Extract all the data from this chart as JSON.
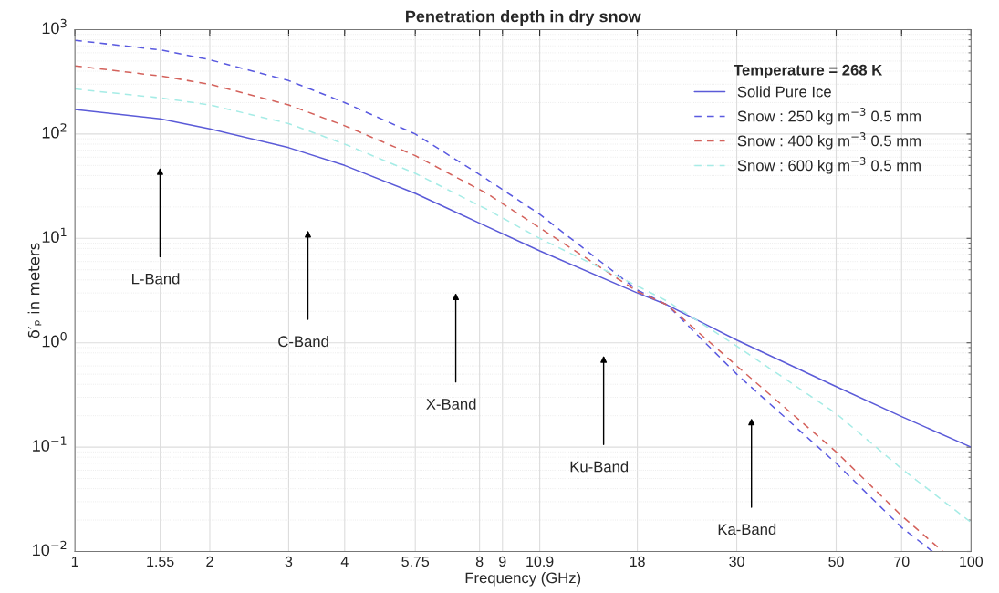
{
  "chart_data": {
    "type": "line",
    "title": "Penetration depth in dry snow",
    "xlabel": "Frequency (GHz)",
    "ylabel": "δ′ₚ in meters",
    "legend_title": "Temperature = 268 K",
    "log": "xy",
    "grid": true,
    "legend": "top right",
    "xlim": [
      1,
      100
    ],
    "xticks": [
      1,
      1.55,
      2,
      3,
      4,
      5.75,
      8,
      9,
      10.9,
      18,
      30,
      50,
      70,
      100
    ],
    "ylim": [
      0.01,
      1000
    ],
    "yticks": [
      {
        "value": 0.01,
        "label": "10$^{−2}$"
      },
      {
        "value": 0.1,
        "label": "10$^{−1}$"
      },
      {
        "value": 1,
        "label": "10$^{0}$"
      },
      {
        "value": 10,
        "label": "10$^{1}$"
      },
      {
        "value": 100,
        "label": "10$^{2}$"
      },
      {
        "value": 1000,
        "label": "10$^{3}$"
      }
    ],
    "series": [
      {
        "name": "Solid Pure Ice",
        "color": "#5b5bd8",
        "line_style": "solid",
        "x": [
          1,
          1.55,
          2,
          3,
          4,
          5.75,
          8,
          10.9,
          18,
          21,
          30,
          50,
          70,
          100
        ],
        "values": [
          172,
          140,
          112,
          74,
          50,
          27,
          14,
          7.6,
          3.0,
          2.3,
          1.06,
          0.38,
          0.196,
          0.1
        ]
      },
      {
        "name": "Snow : 250 kg m$^{−3}$ 0.5 mm",
        "color": "#5a5ae0",
        "line_style": "dashed",
        "x": [
          1,
          1.55,
          2,
          3,
          4,
          5.75,
          8.3,
          10.9,
          18,
          21,
          30,
          50,
          70,
          82
        ],
        "values": [
          790,
          640,
          515,
          325,
          200,
          100,
          37,
          17,
          3.2,
          2.3,
          0.5,
          0.07,
          0.017,
          0.01
        ]
      },
      {
        "name": "Snow : 400 kg m$^{−3}$ 0.5 mm",
        "color": "#d4625c",
        "line_style": "dashed",
        "x": [
          1,
          1.55,
          2,
          3,
          4,
          5.75,
          8.3,
          10.9,
          18,
          21,
          30,
          50,
          70,
          86.5
        ],
        "values": [
          450,
          360,
          300,
          190,
          120,
          62,
          27,
          12.6,
          3.1,
          2.3,
          0.6,
          0.09,
          0.022,
          0.01
        ]
      },
      {
        "name": "Snow : 600 kg m$^{−3}$ 0.5 mm",
        "color": "#a6ece6",
        "line_style": "dashed",
        "x": [
          1,
          1.55,
          2,
          3,
          4,
          5.75,
          8.3,
          10.9,
          18,
          21,
          30,
          50,
          70,
          100
        ],
        "values": [
          270,
          222,
          190,
          126,
          80,
          42,
          19,
          10,
          3.5,
          2.5,
          0.93,
          0.21,
          0.062,
          0.019
        ]
      }
    ],
    "annotations": [
      "L-Band",
      "C-Band",
      "X-Band",
      "Ku-Band",
      "Ka-Band"
    ]
  }
}
